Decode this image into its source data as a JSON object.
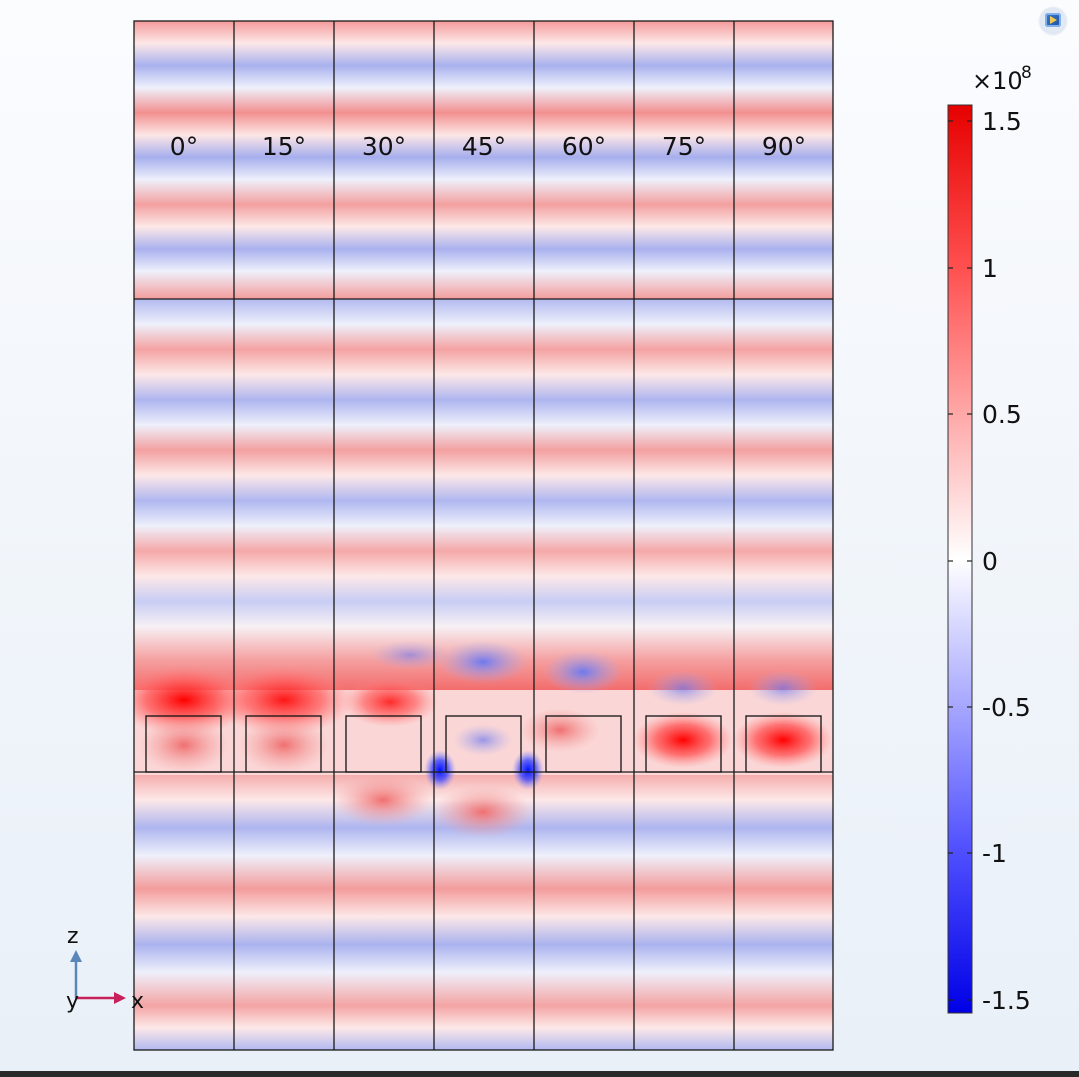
{
  "angles": [
    "0°",
    "15°",
    "30°",
    "45°",
    "60°",
    "75°",
    "90°"
  ],
  "colorbar": {
    "exponent_prefix": "×10",
    "exponent": "8",
    "ticks": [
      "1.5",
      "1",
      "0.5",
      "0",
      "-0.5",
      "-1",
      "-1.5"
    ],
    "range": [
      -1.5,
      1.5
    ],
    "colors": {
      "max": "#ff0000",
      "mid": "#ffffff",
      "min": "#0000ff"
    }
  },
  "axes_triad": {
    "z": "z",
    "y": "y",
    "x": "x",
    "z_color": "#5a86b8",
    "x_color": "#c8205a"
  },
  "icons": {
    "corner": "display-icon"
  }
}
